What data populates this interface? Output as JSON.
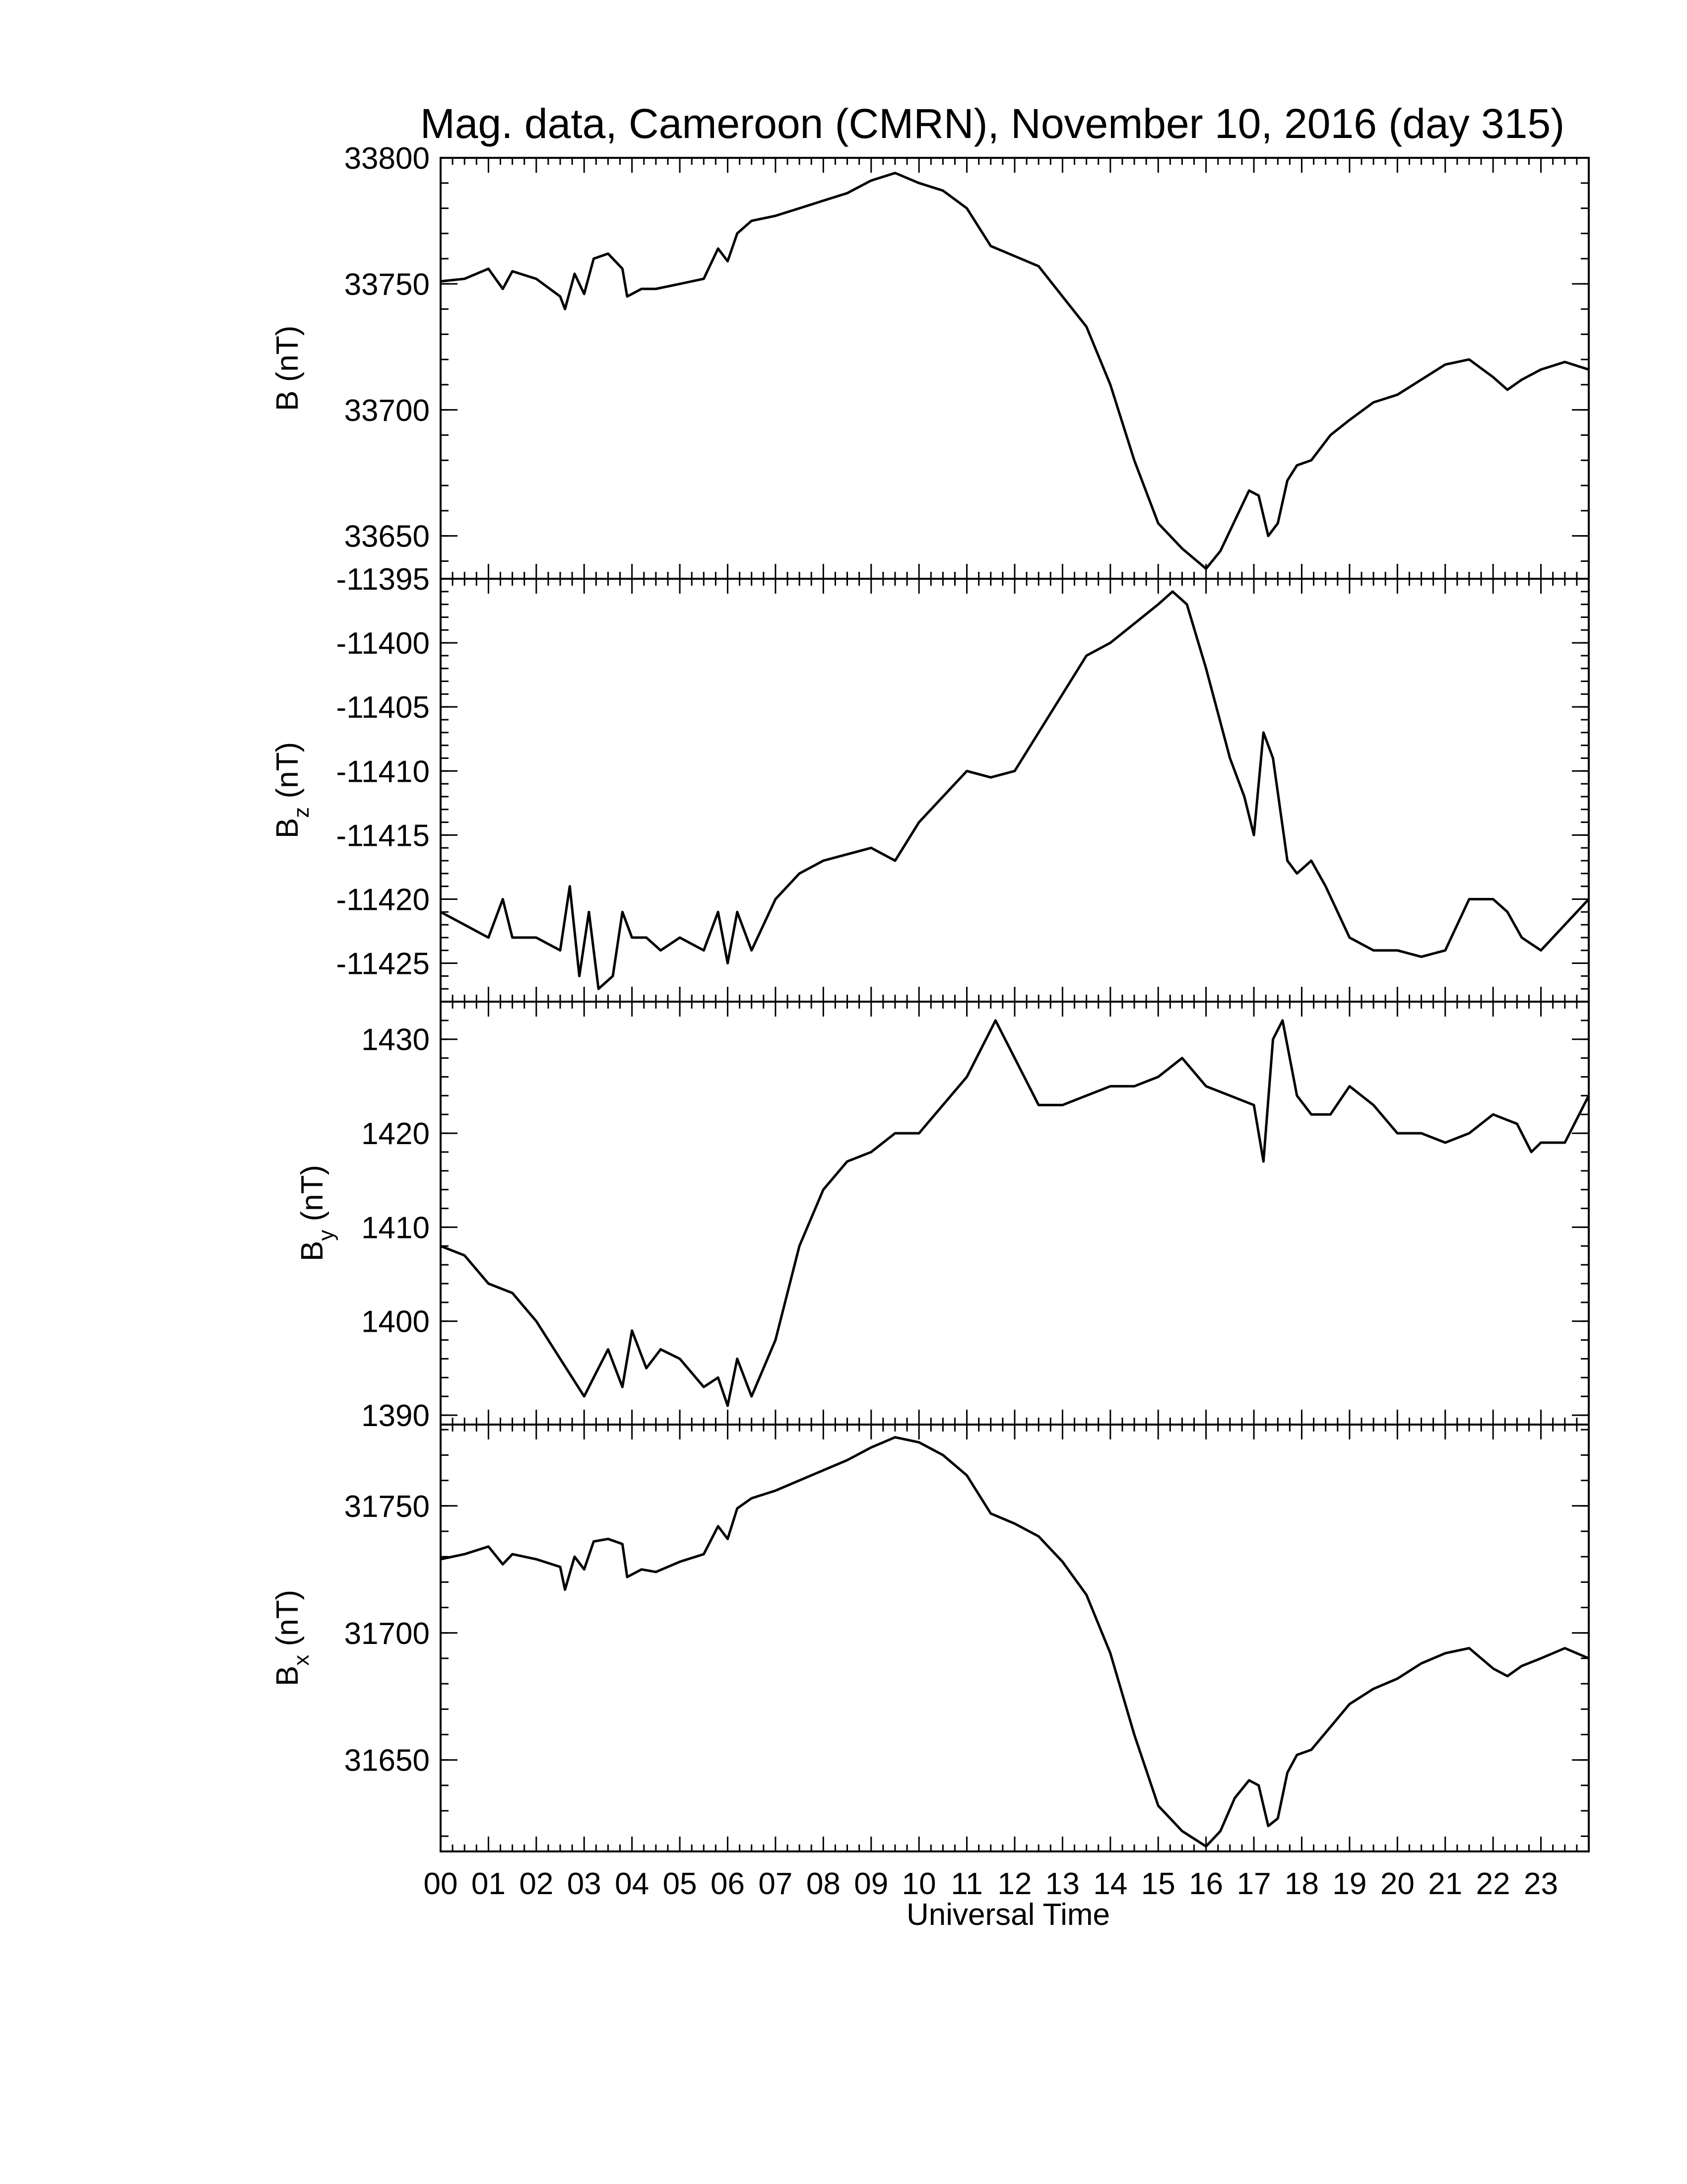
{
  "chart_data": {
    "type": "line",
    "title": "Mag. data, Cameroon (CMRN), November 10, 2016 (day 315)",
    "xlabel": "Universal Time",
    "x_tick_labels": [
      "00",
      "01",
      "02",
      "03",
      "04",
      "05",
      "06",
      "07",
      "08",
      "09",
      "10",
      "11",
      "12",
      "13",
      "14",
      "15",
      "16",
      "17",
      "18",
      "19",
      "20",
      "21",
      "22",
      "23"
    ],
    "xlim": [
      0,
      24
    ],
    "grid": false,
    "line_color": "#000000",
    "panels": [
      {
        "label_main": "B",
        "label_sub": "",
        "label_unit": " (nT)",
        "ylim": [
          33633,
          33800
        ],
        "y_ticks": [
          33650,
          33700,
          33750,
          33800
        ],
        "series": {
          "x": [
            0.0,
            0.5,
            1.0,
            1.3,
            1.5,
            2.0,
            2.5,
            2.6,
            2.8,
            3.0,
            3.2,
            3.5,
            3.8,
            3.9,
            4.2,
            4.5,
            5.0,
            5.5,
            5.8,
            6.0,
            6.2,
            6.5,
            7.0,
            7.5,
            8.0,
            8.5,
            9.0,
            9.5,
            10.0,
            10.5,
            11.0,
            11.5,
            12.0,
            12.5,
            13.0,
            13.5,
            14.0,
            14.5,
            15.0,
            15.5,
            16.0,
            16.3,
            16.6,
            16.9,
            17.1,
            17.3,
            17.5,
            17.7,
            17.9,
            18.2,
            18.6,
            19.0,
            19.5,
            20.0,
            20.5,
            21.0,
            21.5,
            22.0,
            22.3,
            22.6,
            23.0,
            23.5,
            24.0
          ],
          "y": [
            33751,
            33752,
            33756,
            33748,
            33755,
            33752,
            33745,
            33740,
            33754,
            33746,
            33760,
            33762,
            33756,
            33745,
            33748,
            33748,
            33750,
            33752,
            33764,
            33759,
            33770,
            33775,
            33777,
            33780,
            33783,
            33786,
            33791,
            33794,
            33790,
            33787,
            33780,
            33765,
            33761,
            33757,
            33745,
            33733,
            33710,
            33680,
            33655,
            33645,
            33637,
            33644,
            33656,
            33668,
            33666,
            33650,
            33655,
            33672,
            33678,
            33680,
            33690,
            33696,
            33703,
            33706,
            33712,
            33718,
            33720,
            33713,
            33708,
            33712,
            33716,
            33719,
            33716
          ]
        }
      },
      {
        "label_main": "B",
        "label_sub": "z",
        "label_unit": " (nT)",
        "ylim": [
          -11428,
          -11395
        ],
        "y_ticks": [
          -11425,
          -11420,
          -11415,
          -11410,
          -11405,
          -11400,
          -11395
        ],
        "series": {
          "x": [
            0.0,
            0.5,
            1.0,
            1.3,
            1.5,
            2.0,
            2.5,
            2.7,
            2.9,
            3.1,
            3.3,
            3.6,
            3.8,
            4.0,
            4.3,
            4.6,
            5.0,
            5.5,
            5.8,
            6.0,
            6.2,
            6.5,
            7.0,
            7.5,
            8.0,
            8.5,
            9.0,
            9.5,
            10.0,
            10.5,
            11.0,
            11.5,
            12.0,
            12.5,
            13.0,
            13.5,
            14.0,
            14.5,
            15.0,
            15.3,
            15.6,
            16.0,
            16.5,
            16.8,
            17.0,
            17.2,
            17.4,
            17.7,
            17.9,
            18.2,
            18.5,
            19.0,
            19.5,
            20.0,
            20.5,
            21.0,
            21.5,
            22.0,
            22.3,
            22.6,
            23.0,
            23.5,
            24.0
          ],
          "y": [
            -11421,
            -11422,
            -11423,
            -11420,
            -11423,
            -11423,
            -11424,
            -11419,
            -11426,
            -11421,
            -11427,
            -11426,
            -11421,
            -11423,
            -11423,
            -11424,
            -11423,
            -11424,
            -11421,
            -11425,
            -11421,
            -11424,
            -11420,
            -11418,
            -11417,
            -11416.5,
            -11416,
            -11417,
            -11414,
            -11412,
            -11410,
            -11410.5,
            -11410,
            -11407,
            -11404,
            -11401,
            -11400,
            -11398.5,
            -11397,
            -11396,
            -11397,
            -11402,
            -11409,
            -11412,
            -11415,
            -11407,
            -11409,
            -11417,
            -11418,
            -11417,
            -11419,
            -11423,
            -11424,
            -11424,
            -11424.5,
            -11424,
            -11420,
            -11420,
            -11421,
            -11423,
            -11424,
            -11422,
            -11420
          ]
        }
      },
      {
        "label_main": "B",
        "label_sub": "y",
        "label_unit": " (nT)",
        "ylim": [
          1389,
          1434
        ],
        "y_ticks": [
          1390,
          1400,
          1410,
          1420,
          1430
        ],
        "series": {
          "x": [
            0.0,
            0.5,
            1.0,
            1.5,
            2.0,
            2.5,
            3.0,
            3.2,
            3.5,
            3.8,
            4.0,
            4.3,
            4.6,
            5.0,
            5.5,
            5.8,
            6.0,
            6.2,
            6.5,
            7.0,
            7.5,
            8.0,
            8.5,
            9.0,
            9.5,
            10.0,
            10.5,
            11.0,
            11.3,
            11.6,
            12.0,
            12.5,
            13.0,
            13.5,
            14.0,
            14.5,
            15.0,
            15.5,
            16.0,
            16.5,
            17.0,
            17.2,
            17.4,
            17.6,
            17.9,
            18.2,
            18.6,
            19.0,
            19.5,
            20.0,
            20.5,
            21.0,
            21.5,
            22.0,
            22.5,
            22.8,
            23.0,
            23.5,
            24.0
          ],
          "y": [
            1408,
            1407,
            1404,
            1403,
            1400,
            1396,
            1392,
            1394,
            1397,
            1393,
            1399,
            1395,
            1397,
            1396,
            1393,
            1394,
            1391,
            1396,
            1392,
            1398,
            1408,
            1414,
            1417,
            1418,
            1420,
            1420,
            1423,
            1426,
            1429,
            1432,
            1428,
            1423,
            1423,
            1424,
            1425,
            1425,
            1426,
            1428,
            1425,
            1424,
            1423,
            1417,
            1430,
            1432,
            1424,
            1422,
            1422,
            1425,
            1423,
            1420,
            1420,
            1419,
            1420,
            1422,
            1421,
            1418,
            1419,
            1419,
            1424
          ]
        }
      },
      {
        "label_main": "B",
        "label_sub": "x",
        "label_unit": " (nT)",
        "ylim": [
          31614,
          31782
        ],
        "y_ticks": [
          31650,
          31700,
          31750
        ],
        "series": {
          "x": [
            0.0,
            0.5,
            1.0,
            1.3,
            1.5,
            2.0,
            2.5,
            2.6,
            2.8,
            3.0,
            3.2,
            3.5,
            3.8,
            3.9,
            4.2,
            4.5,
            5.0,
            5.5,
            5.8,
            6.0,
            6.2,
            6.5,
            7.0,
            7.5,
            8.0,
            8.5,
            9.0,
            9.5,
            10.0,
            10.5,
            11.0,
            11.5,
            12.0,
            12.5,
            13.0,
            13.5,
            14.0,
            14.5,
            15.0,
            15.5,
            16.0,
            16.3,
            16.6,
            16.9,
            17.1,
            17.3,
            17.5,
            17.7,
            17.9,
            18.2,
            18.6,
            19.0,
            19.5,
            20.0,
            20.5,
            21.0,
            21.5,
            22.0,
            22.3,
            22.6,
            23.0,
            23.5,
            24.0
          ],
          "y": [
            31729,
            31731,
            31734,
            31727,
            31731,
            31729,
            31726,
            31717,
            31730,
            31725,
            31736,
            31737,
            31735,
            31722,
            31725,
            31724,
            31728,
            31731,
            31742,
            31737,
            31749,
            31753,
            31756,
            31760,
            31764,
            31768,
            31773,
            31777,
            31775,
            31770,
            31762,
            31747,
            31743,
            31738,
            31728,
            31715,
            31692,
            31660,
            31632,
            31622,
            31616,
            31622,
            31635,
            31642,
            31640,
            31624,
            31627,
            31645,
            31652,
            31654,
            31663,
            31672,
            31678,
            31682,
            31688,
            31692,
            31694,
            31686,
            31683,
            31687,
            31690,
            31694,
            31690
          ]
        }
      }
    ]
  }
}
